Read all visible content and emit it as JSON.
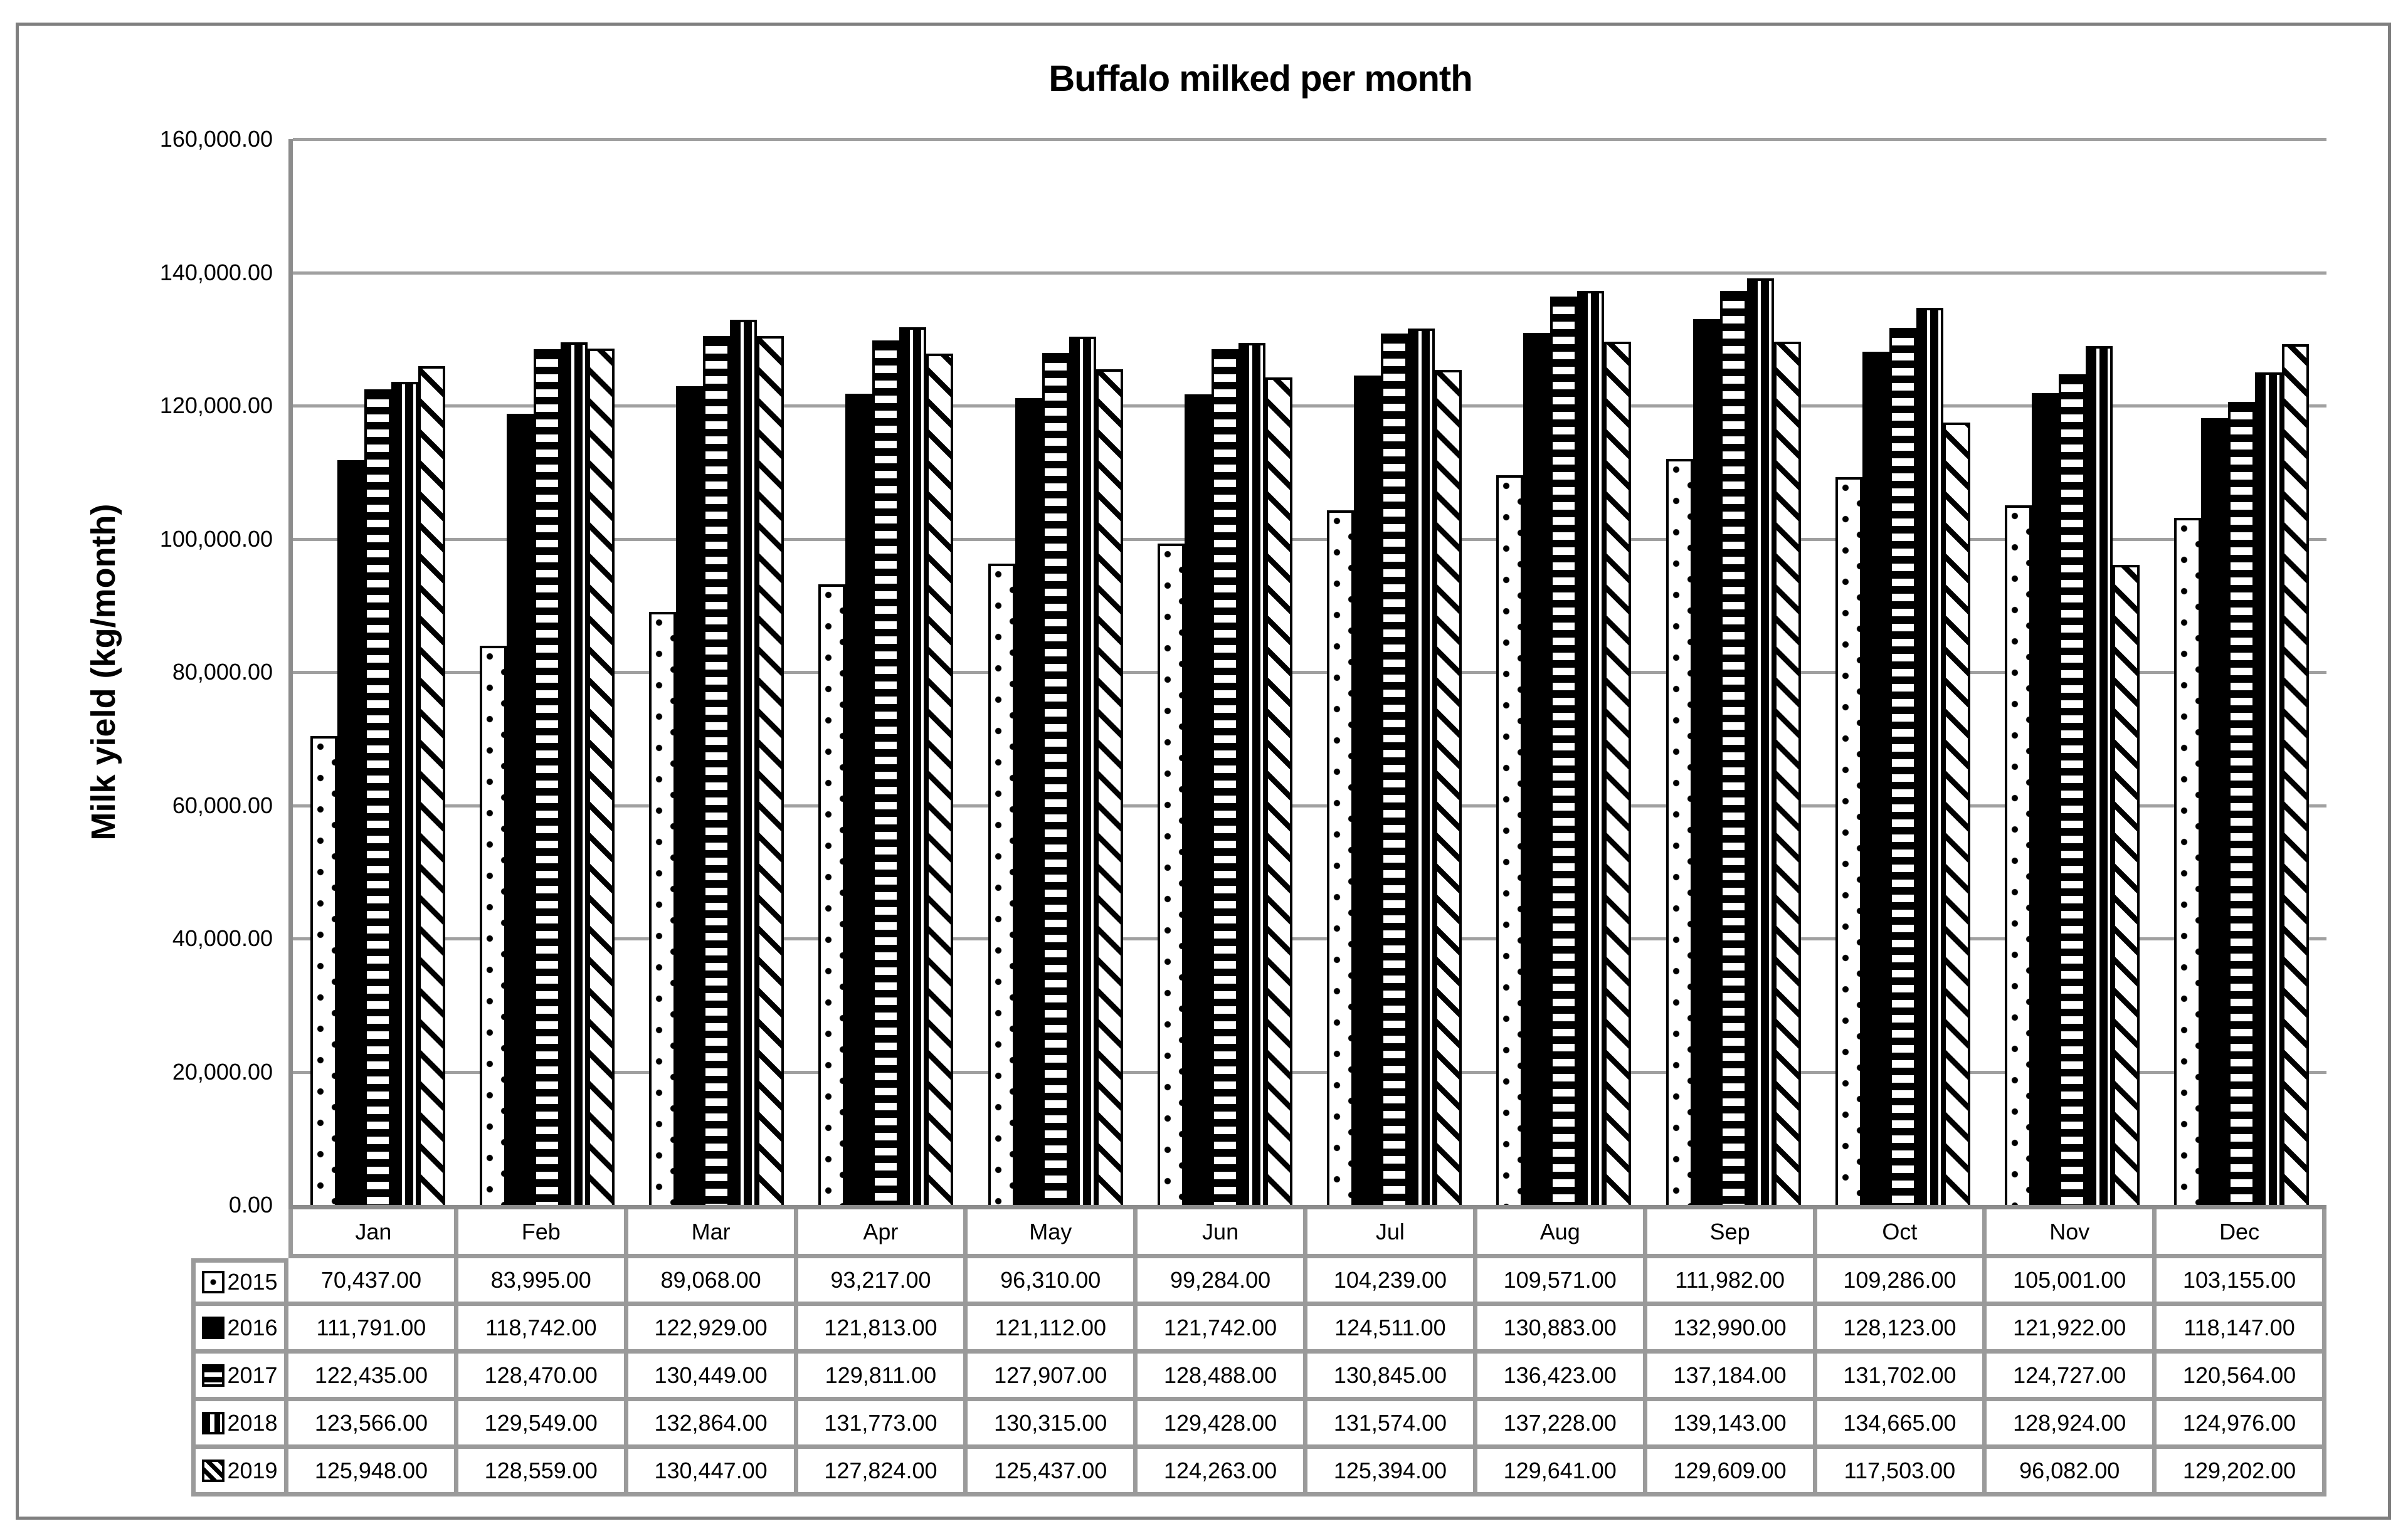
{
  "chart_data": {
    "type": "bar",
    "title": "Buffalo milked per month",
    "xlabel": "",
    "ylabel": "Milk yield (kg/month)",
    "ylim": [
      0,
      160000
    ],
    "ytick_step": 20000,
    "ytick_labels": [
      "0.00",
      "20,000.00",
      "40,000.00",
      "60,000.00",
      "80,000.00",
      "100,000.00",
      "120,000.00",
      "140,000.00",
      "160,000.00"
    ],
    "grid": true,
    "legend_position": "data-table-left",
    "categories": [
      "Jan",
      "Feb",
      "Mar",
      "Apr",
      "May",
      "Jun",
      "Jul",
      "Aug",
      "Sep",
      "Oct",
      "Nov",
      "Dec"
    ],
    "series": [
      {
        "name": "2015",
        "pattern": "dotted",
        "values": [
          70437,
          83995,
          89068,
          93217,
          96310,
          99284,
          104239,
          109571,
          111982,
          109286,
          105001,
          103155
        ]
      },
      {
        "name": "2016",
        "pattern": "solid",
        "values": [
          111791,
          118742,
          122929,
          121813,
          121112,
          121742,
          124511,
          130883,
          132990,
          128123,
          121922,
          118147
        ]
      },
      {
        "name": "2017",
        "pattern": "hstripe",
        "values": [
          122435,
          128470,
          130449,
          129811,
          127907,
          128488,
          130845,
          136423,
          137184,
          131702,
          124727,
          120564
        ]
      },
      {
        "name": "2018",
        "pattern": "vstripe",
        "values": [
          123566,
          129549,
          132864,
          131773,
          130315,
          129428,
          131574,
          137228,
          139143,
          134665,
          128924,
          124976
        ]
      },
      {
        "name": "2019",
        "pattern": "diag",
        "values": [
          125948,
          128559,
          130447,
          127824,
          125437,
          124263,
          125394,
          129641,
          129609,
          117503,
          96082,
          129202
        ]
      }
    ],
    "colors": {
      "bar_fill": "#000000",
      "bar_background": "#ffffff",
      "gridline": "#a0a0a0",
      "axis": "#8c8c8c",
      "table_border": "#9a9a9a",
      "frame_border": "#7f7f7f",
      "text": "#000000"
    }
  }
}
